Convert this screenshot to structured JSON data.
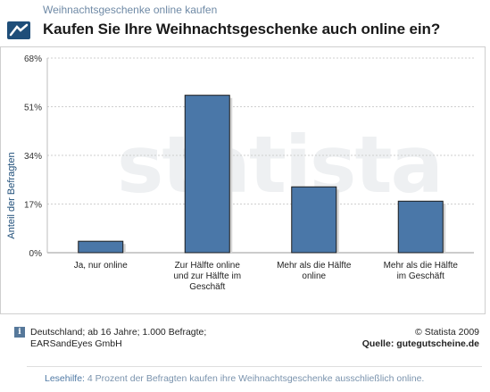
{
  "header": {
    "kicker": "Weihnachtsgeschenke online kaufen",
    "title": "Kaufen Sie Ihre Weihnachtsgeschenke auch online ein?"
  },
  "watermark": "statista",
  "chart_data": {
    "type": "bar",
    "categories": [
      [
        "Ja, nur online"
      ],
      [
        "Zur Hälfte online",
        "und zur Hälfte im",
        "Geschäft"
      ],
      [
        "Mehr als die Hälfte",
        "online"
      ],
      [
        "Mehr als die Hälfte",
        "im Geschäft"
      ]
    ],
    "values": [
      4,
      55,
      23,
      18
    ],
    "ylabel": "Anteil der Befragten",
    "ylim": [
      0,
      68
    ],
    "yticks": [
      "0%",
      "17%",
      "34%",
      "51%",
      "68%"
    ],
    "ytick_values": [
      0,
      17,
      34,
      51,
      68
    ],
    "grid": true,
    "bar_color": "#4a77a8"
  },
  "footer": {
    "info_icon": "i",
    "note_line1": "Deutschland; ab 16 Jahre; 1.000 Befragte;",
    "note_line2": "EARSandEyes GmbH",
    "copyright": "© Statista 2009",
    "source": "Quelle: gutegutscheine.de"
  },
  "lesehilfe": {
    "label": "Lesehilfe:",
    "text": "4 Prozent der Befragten kaufen ihre Weihnachtsgeschenke ausschließlich online."
  }
}
